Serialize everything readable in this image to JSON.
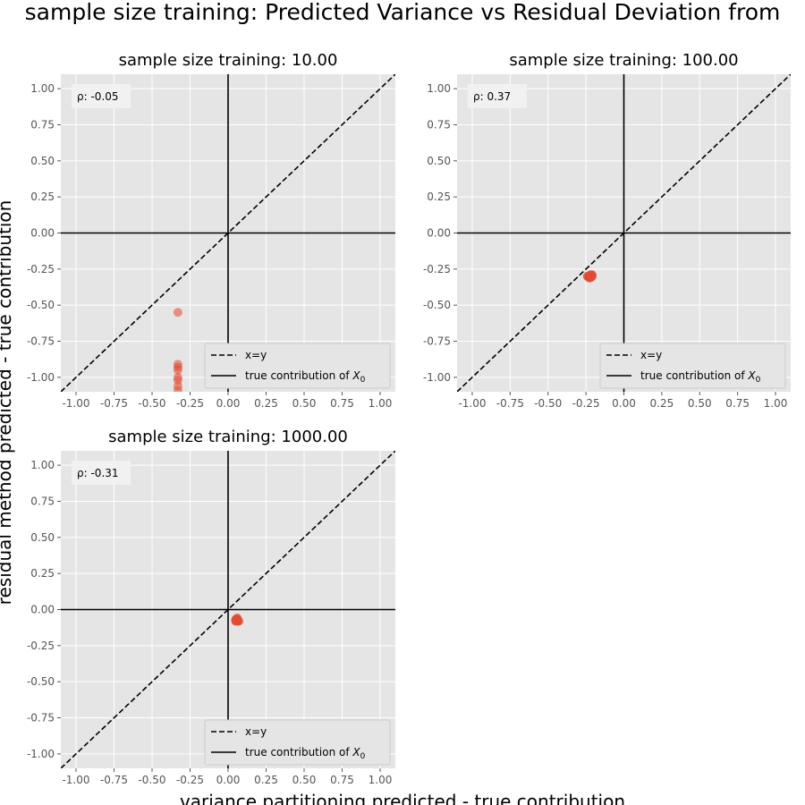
{
  "figure": {
    "suptitle": "sample size training: Predicted Variance vs Residual Deviation from",
    "xlabel": "variance partitioning predicted - true contribution",
    "ylabel": "residual method predicted - true contribution"
  },
  "chart_data": [
    {
      "type": "scatter",
      "title": "sample size training: 10.00",
      "xlim": [
        -1.1,
        1.1
      ],
      "ylim": [
        -1.1,
        1.1
      ],
      "ticks": [
        "-1.00",
        "-0.75",
        "-0.50",
        "-0.25",
        "0.00",
        "0.25",
        "0.50",
        "0.75",
        "1.00"
      ],
      "grid": true,
      "rho_label": "ρ: -0.05",
      "legend": {
        "placement": "lower-right",
        "entries": [
          "x=y",
          "true contribution of X0"
        ]
      },
      "point_color": "#e24a33",
      "point_alpha": 0.55,
      "points": [
        [
          -0.33,
          -0.55
        ],
        [
          -0.33,
          -0.91
        ],
        [
          -0.33,
          -0.93
        ],
        [
          -0.33,
          -0.95
        ],
        [
          -0.33,
          -1.0
        ],
        [
          -0.33,
          -1.02
        ],
        [
          -0.33,
          -1.06
        ],
        [
          -0.33,
          -1.09
        ]
      ]
    },
    {
      "type": "scatter",
      "title": "sample size training: 100.00",
      "xlim": [
        -1.1,
        1.1
      ],
      "ylim": [
        -1.1,
        1.1
      ],
      "ticks": [
        "-1.00",
        "-0.75",
        "-0.50",
        "-0.25",
        "0.00",
        "0.25",
        "0.50",
        "0.75",
        "1.00"
      ],
      "grid": true,
      "rho_label": "ρ: 0.37",
      "legend": {
        "placement": "lower-right",
        "entries": [
          "x=y",
          "true contribution of X0"
        ]
      },
      "point_color": "#e24a33",
      "point_alpha": 0.85,
      "points": [
        [
          -0.24,
          -0.3
        ],
        [
          -0.23,
          -0.3
        ],
        [
          -0.23,
          -0.31
        ],
        [
          -0.22,
          -0.29
        ],
        [
          -0.22,
          -0.3
        ],
        [
          -0.21,
          -0.3
        ],
        [
          -0.21,
          -0.29
        ],
        [
          -0.22,
          -0.31
        ]
      ]
    },
    {
      "type": "scatter",
      "title": "sample size training: 1000.00",
      "xlim": [
        -1.1,
        1.1
      ],
      "ylim": [
        -1.1,
        1.1
      ],
      "ticks": [
        "-1.00",
        "-0.75",
        "-0.50",
        "-0.25",
        "0.00",
        "0.25",
        "0.50",
        "0.75",
        "1.00"
      ],
      "grid": true,
      "rho_label": "ρ: -0.31",
      "legend": {
        "placement": "lower-right",
        "entries": [
          "x=y",
          "true contribution of X0"
        ]
      },
      "point_color": "#e24a33",
      "point_alpha": 0.85,
      "points": [
        [
          0.05,
          -0.07
        ],
        [
          0.06,
          -0.08
        ],
        [
          0.06,
          -0.07
        ],
        [
          0.07,
          -0.08
        ],
        [
          0.05,
          -0.08
        ],
        [
          0.06,
          -0.06
        ]
      ]
    }
  ]
}
